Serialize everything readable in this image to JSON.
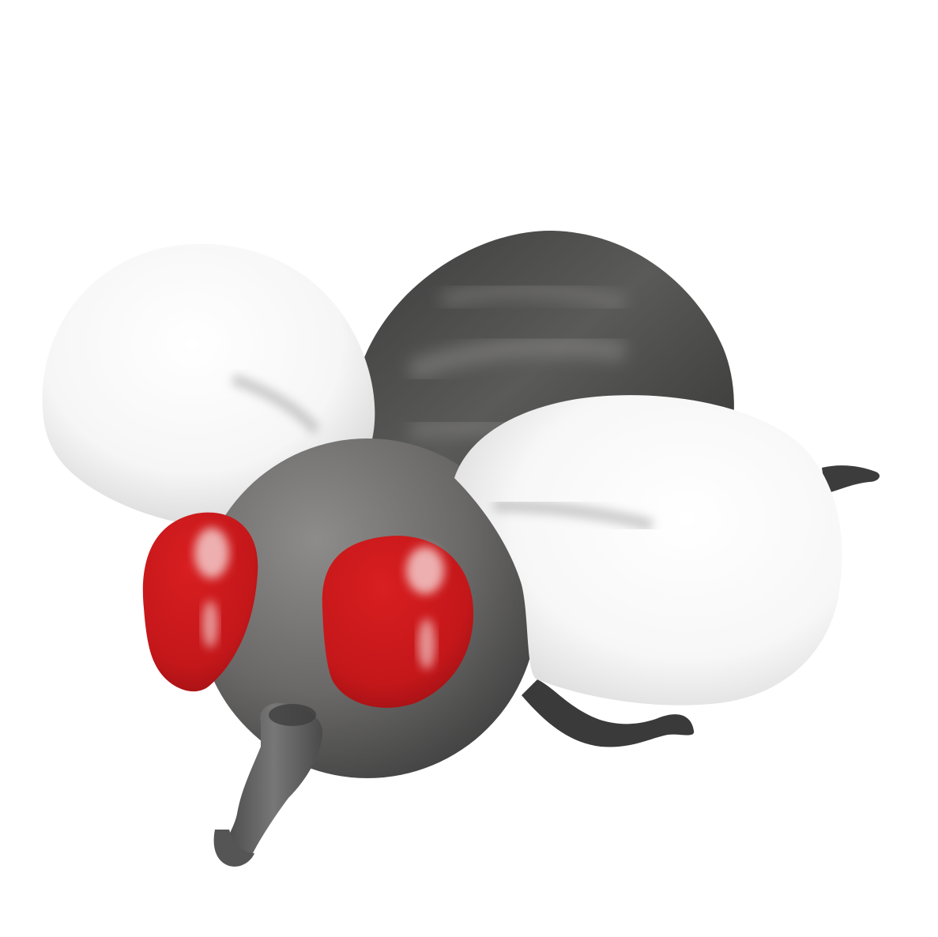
{
  "illustration": {
    "subject": "fly-icon",
    "colors": {
      "background": "#ffffff",
      "body_dark": "#3a3a3a",
      "body_mid": "#6e6e6c",
      "head_light": "#8a8987",
      "head_dark": "#404040",
      "wing_light": "#ffffff",
      "wing_shade": "#cfcfcf",
      "eye_red": "#c8191c",
      "eye_dark": "#8e0f12",
      "eye_highlight": "#f3c9c9",
      "leg": "#3c3c3c",
      "proboscis": "#555555"
    }
  }
}
